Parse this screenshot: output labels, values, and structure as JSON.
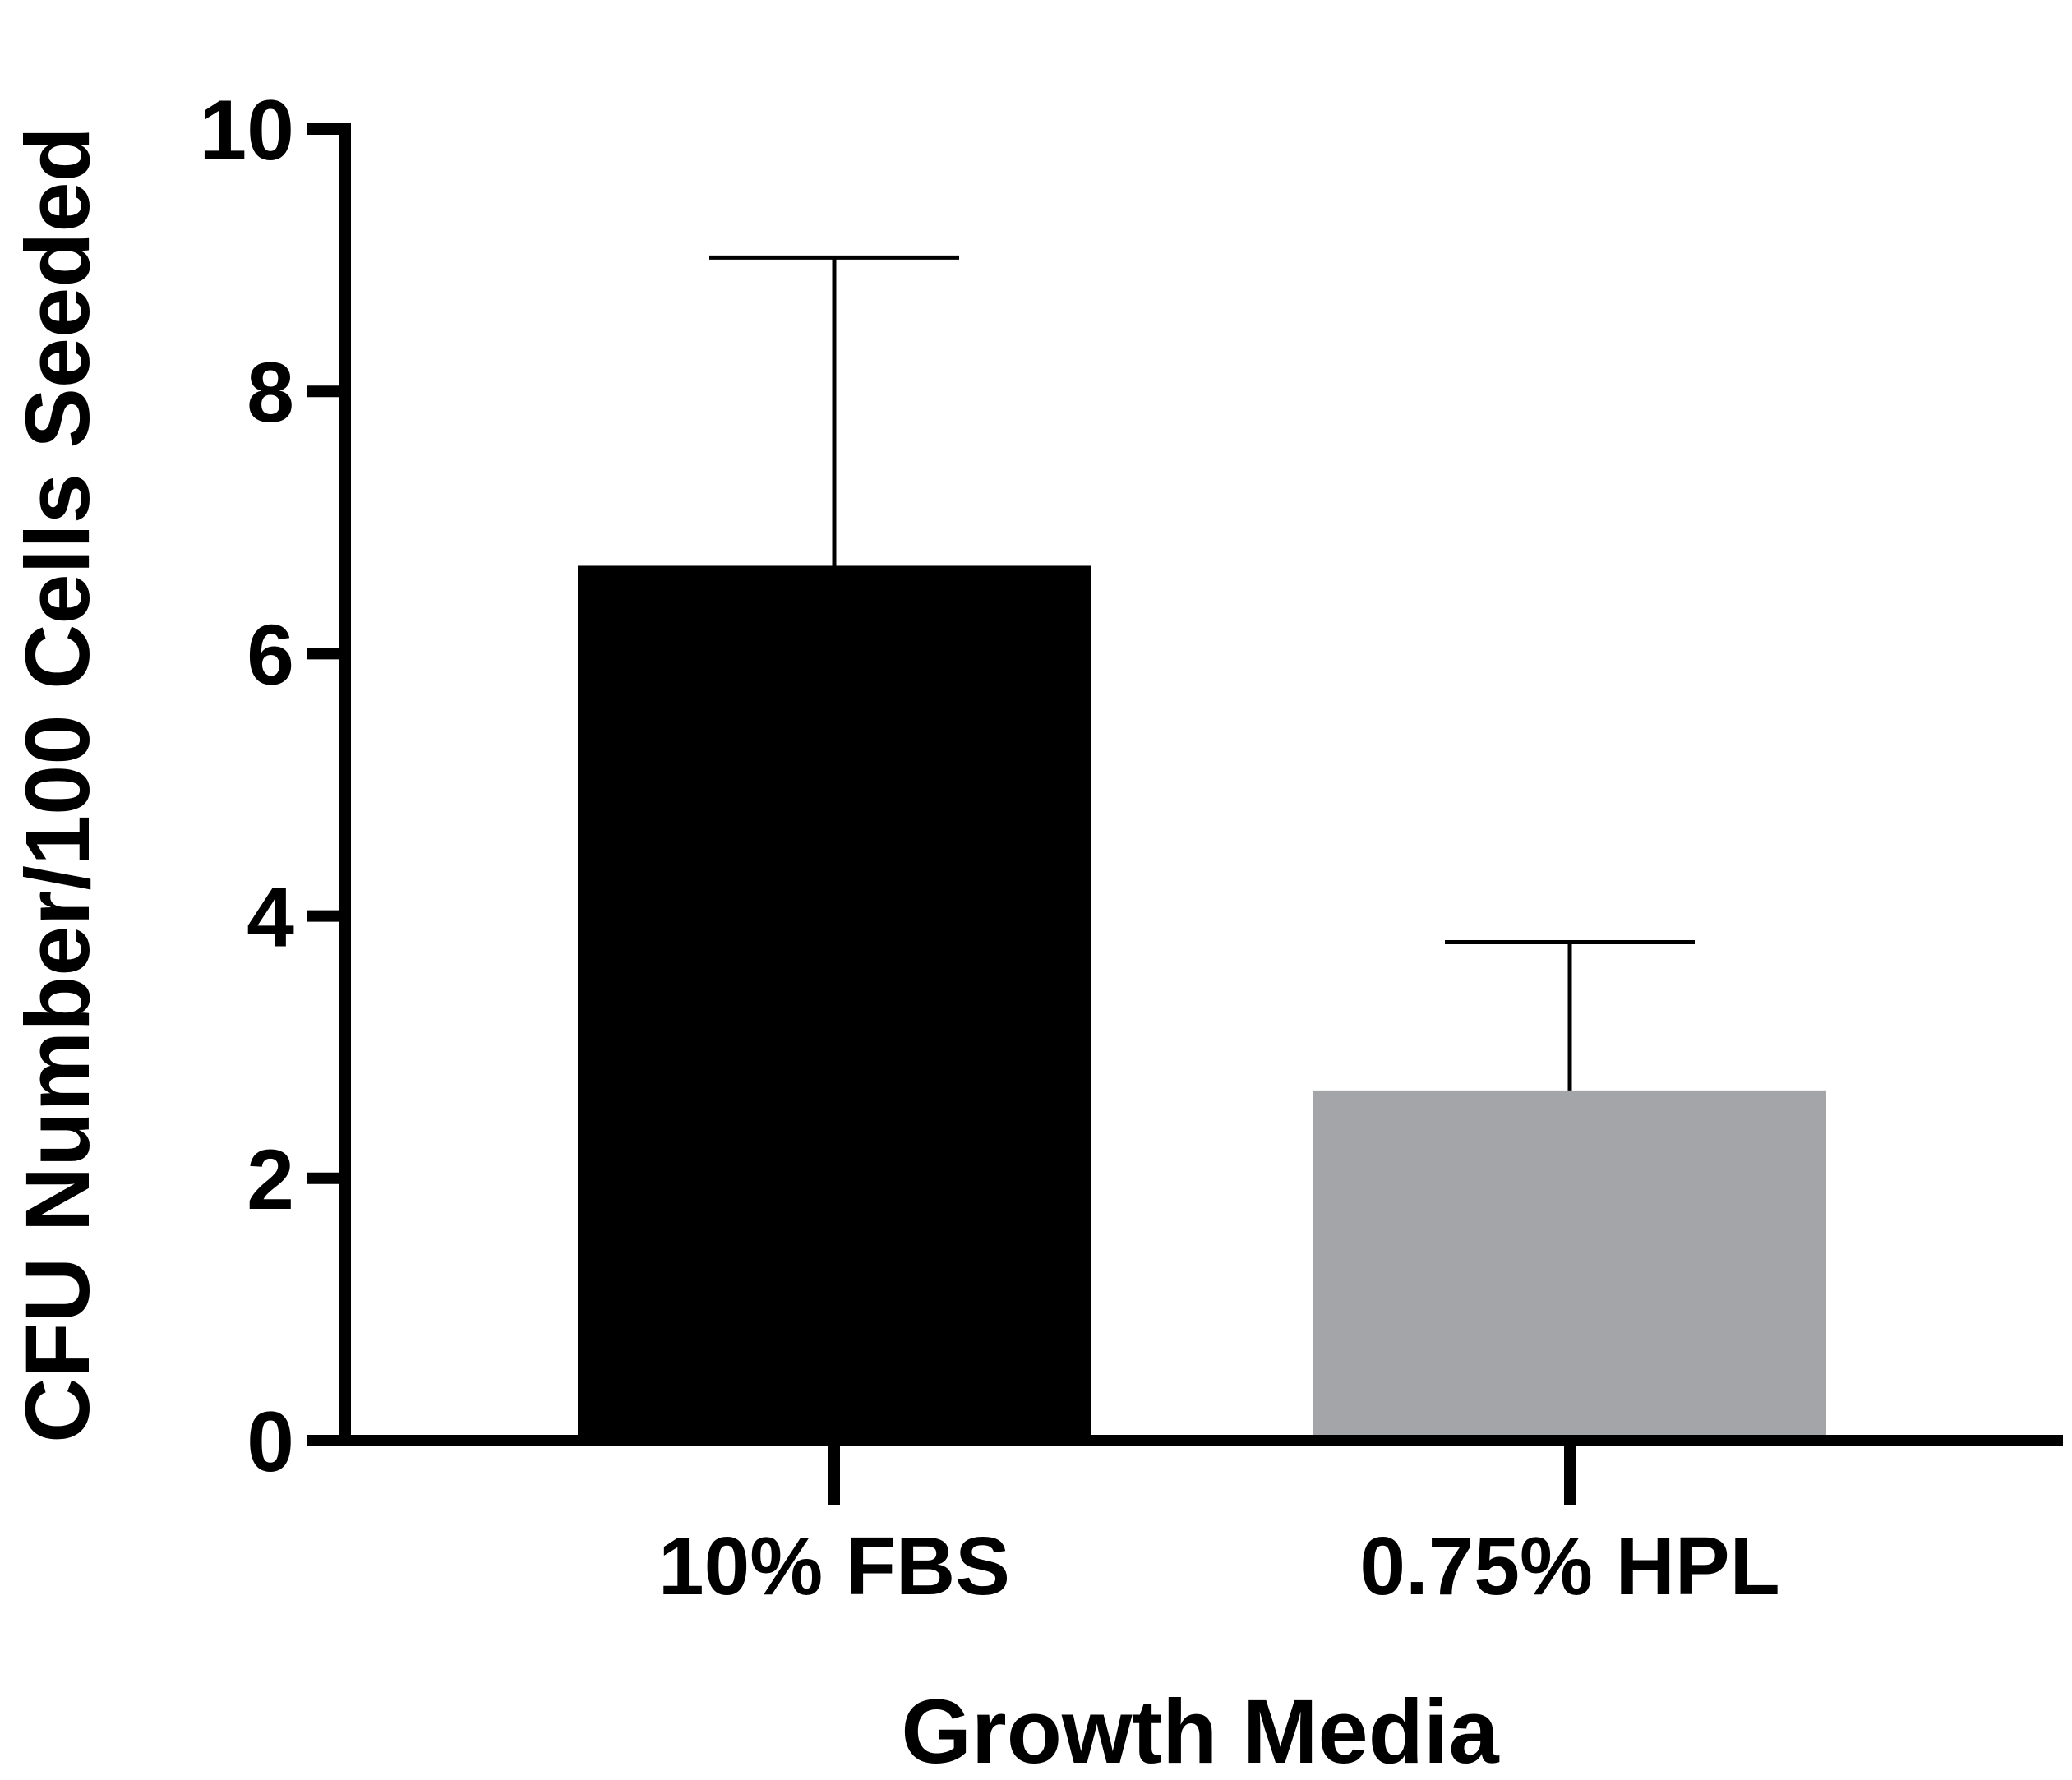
{
  "chart_data": {
    "type": "bar",
    "title": "",
    "xlabel": "Growth Media",
    "ylabel": "CFU Number/100 Cells Seeded",
    "categories": [
      "10% FBS",
      "0.75% HPL"
    ],
    "series": [
      {
        "values": [
          6.67,
          2.67
        ],
        "error_upper": [
          2.35,
          1.13
        ],
        "colors": [
          "#000000",
          "#a4a5a8"
        ]
      }
    ],
    "ylim": [
      0,
      10
    ],
    "yticks": [
      0,
      2,
      4,
      6,
      8,
      10
    ],
    "ytick_labels": [
      "0",
      "2",
      "4",
      "6",
      "8",
      "10"
    ],
    "grid": false,
    "legend": "none"
  }
}
